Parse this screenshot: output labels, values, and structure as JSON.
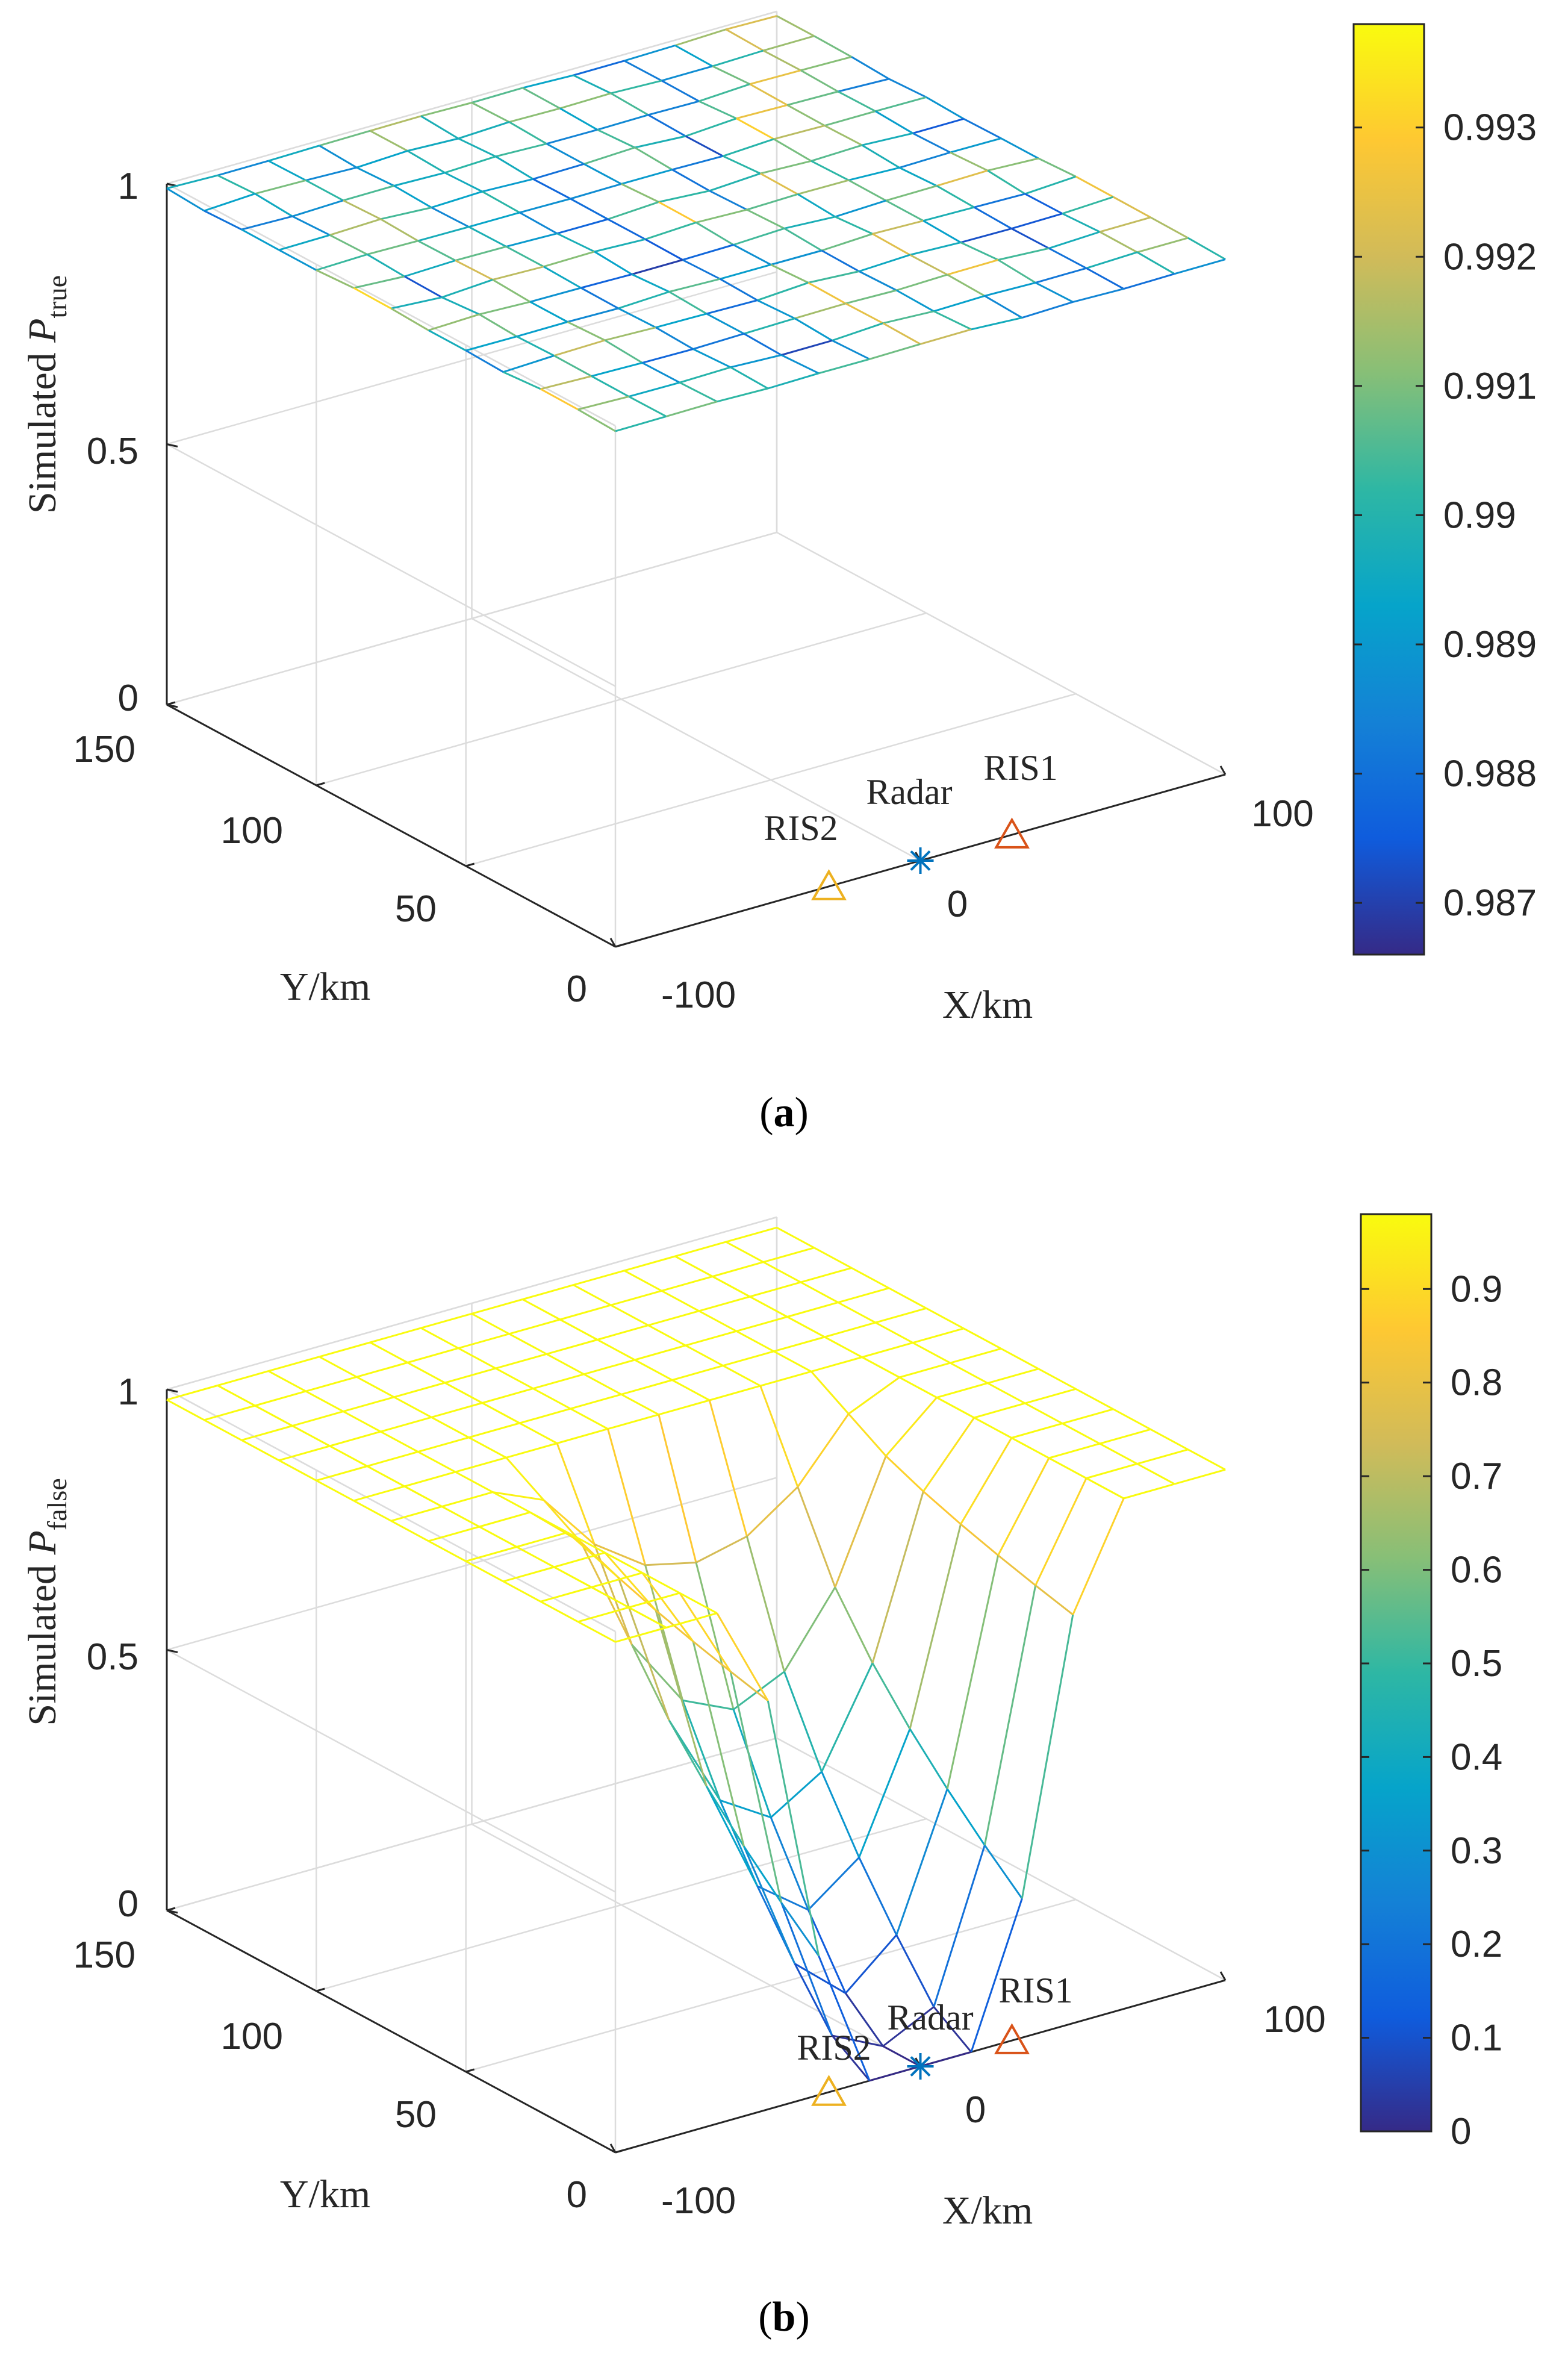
{
  "chart_data": [
    {
      "type": "surface",
      "subplot_label": "a",
      "xlabel": "X/km",
      "ylabel": "Y/km",
      "zlabel_main": "Simulated ",
      "zlabel_italic": "P",
      "zlabel_sub": "true",
      "xlim": [
        -100,
        100
      ],
      "ylim": [
        0,
        150
      ],
      "zlim": [
        0,
        1
      ],
      "xticks": [
        -100,
        0,
        100
      ],
      "yticks": [
        0,
        50,
        100,
        150
      ],
      "zticks": [
        0,
        0.5,
        1
      ],
      "xtick_labels": [
        "-100",
        "0",
        "100"
      ],
      "ytick_labels": [
        "0",
        "50",
        "100",
        "150"
      ],
      "ztick_labels": [
        "0",
        "0.5",
        "1"
      ],
      "grid": true,
      "mesh": {
        "nx": 13,
        "ny": 13,
        "base": 0.99,
        "amplitude": 0.0035,
        "pattern": "noise"
      },
      "colorbar": {
        "min": 0.9866,
        "max": 0.9938,
        "ticks": [
          0.987,
          0.988,
          0.989,
          0.99,
          0.991,
          0.992,
          0.993
        ],
        "tick_labels": [
          "0.987",
          "0.988",
          "0.989",
          "0.99",
          "0.991",
          "0.992",
          "0.993"
        ]
      },
      "markers": [
        {
          "name": "Radar",
          "label": "Radar",
          "x": 0,
          "y": 0,
          "symbol": "asterisk",
          "color": "#0072BD"
        },
        {
          "name": "RIS1",
          "label": "RIS1",
          "x": 30,
          "y": 0,
          "symbol": "triangle",
          "color": "#D95319"
        },
        {
          "name": "RIS2",
          "label": "RIS2",
          "x": -30,
          "y": 0,
          "symbol": "triangle",
          "color": "#EDB120"
        }
      ]
    },
    {
      "type": "surface",
      "subplot_label": "b",
      "xlabel": "X/km",
      "ylabel": "Y/km",
      "zlabel_main": "Simulated  ",
      "zlabel_italic": "P",
      "zlabel_sub": "false",
      "xlim": [
        -100,
        100
      ],
      "ylim": [
        0,
        150
      ],
      "zlim": [
        0,
        1
      ],
      "xticks": [
        -100,
        0,
        100
      ],
      "yticks": [
        0,
        50,
        100,
        150
      ],
      "zticks": [
        0,
        0.5,
        1
      ],
      "xtick_labels": [
        "-100",
        "0",
        "100"
      ],
      "ytick_labels": [
        "0",
        "50",
        "100",
        "150"
      ],
      "ztick_labels": [
        "0",
        "0.5",
        "1"
      ],
      "grid": true,
      "mesh": {
        "nx": 13,
        "ny": 13,
        "base": 0.98,
        "pattern": "well",
        "well_center_x": 0,
        "well_half_width_x": 55,
        "well_depth_range_y": 80
      },
      "colorbar": {
        "min": 0,
        "max": 0.98,
        "ticks": [
          0,
          0.1,
          0.2,
          0.3,
          0.4,
          0.5,
          0.6,
          0.7,
          0.8,
          0.9
        ],
        "tick_labels": [
          "0",
          "0.1",
          "0.2",
          "0.3",
          "0.4",
          "0.5",
          "0.6",
          "0.7",
          "0.8",
          "0.9"
        ]
      },
      "markers": [
        {
          "name": "Radar",
          "label": "Radar",
          "x": 0,
          "y": 0,
          "symbol": "asterisk",
          "color": "#0072BD"
        },
        {
          "name": "RIS1",
          "label": "RIS1",
          "x": 30,
          "y": 0,
          "symbol": "triangle",
          "color": "#D95319"
        },
        {
          "name": "RIS2",
          "label": "RIS2",
          "x": -30,
          "y": 0,
          "symbol": "triangle",
          "color": "#EDB120"
        }
      ]
    }
  ]
}
